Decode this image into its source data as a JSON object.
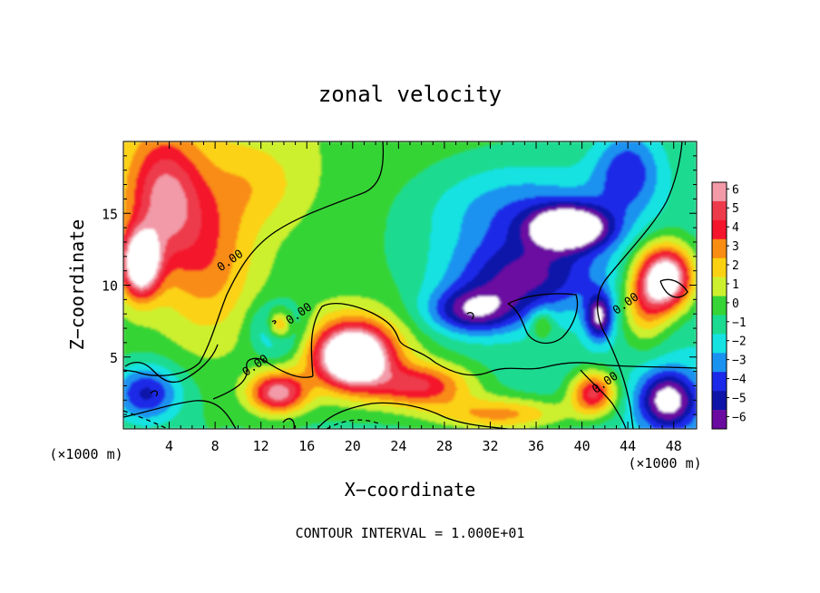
{
  "chart_data": {
    "type": "heatmap",
    "title": "zonal velocity",
    "xlabel": "X−coordinate",
    "ylabel": "Z−coordinate",
    "x_unit_left": "(×1000 m)",
    "x_unit_right": "(×1000 m)",
    "footer": "CONTOUR INTERVAL = 1.000E+01",
    "xlim": [
      0,
      50
    ],
    "ylim": [
      0,
      20
    ],
    "x_ticks": [
      4,
      8,
      12,
      16,
      20,
      24,
      28,
      32,
      36,
      40,
      44,
      48
    ],
    "x_tick_labels": [
      "4",
      "8",
      "12",
      "16",
      "20",
      "24",
      "28",
      "32",
      "36",
      "40",
      "44",
      "48"
    ],
    "y_ticks": [
      5,
      10,
      15
    ],
    "y_tick_labels": [
      "5",
      "10",
      "15"
    ],
    "colorbar": {
      "values": [
        6,
        5,
        4,
        3,
        2,
        1,
        0,
        -1,
        -2,
        -3,
        -4,
        -5,
        -6
      ],
      "labels": [
        "6",
        "5",
        "4",
        "3",
        "2",
        "1",
        "0",
        "−1",
        "−2",
        "−3",
        "−4",
        "−5",
        "−6"
      ],
      "colors": [
        "#f29aa8",
        "#ee3b4b",
        "#f4152c",
        "#f98c12",
        "#fbd212",
        "#cdf02e",
        "#36d436",
        "#1bdb90",
        "#17e2e2",
        "#1a92f0",
        "#1b29e8",
        "#0f14a8",
        "#6a0aa0"
      ]
    },
    "contour_labels": [
      {
        "x": 9.5,
        "y": 11.5,
        "text": "0.00"
      },
      {
        "x": 15.5,
        "y": 7.8,
        "text": "0.00"
      },
      {
        "x": 11.7,
        "y": 4.2,
        "text": "0.00"
      },
      {
        "x": 44.0,
        "y": 8.5,
        "text": "0.00"
      },
      {
        "x": 42.2,
        "y": 3.0,
        "text": "0.00"
      }
    ],
    "field_blobs": [
      {
        "x": 3.5,
        "y": 16.0,
        "value": 5.0,
        "sx": 3.2,
        "sy": 4.5
      },
      {
        "x": 7.5,
        "y": 12.0,
        "value": 3.0,
        "sx": 4.0,
        "sy": 6.0
      },
      {
        "x": 12.0,
        "y": 17.0,
        "value": 1.5,
        "sx": 4.0,
        "sy": 3.0
      },
      {
        "x": 1.5,
        "y": 11.5,
        "value": 9.0,
        "sx": 1.6,
        "sy": 2.2
      },
      {
        "x": 39.0,
        "y": 14.0,
        "value": -7.5,
        "sx": 3.5,
        "sy": 1.5
      },
      {
        "x": 34.5,
        "y": 15.0,
        "value": -3.0,
        "sx": 8.0,
        "sy": 3.5
      },
      {
        "x": 44.0,
        "y": 18.0,
        "value": -3.5,
        "sx": 3.0,
        "sy": 3.0
      },
      {
        "x": 30.5,
        "y": 8.2,
        "value": -5.0,
        "sx": 4.0,
        "sy": 1.6
      },
      {
        "x": 35.0,
        "y": 10.5,
        "value": -4.5,
        "sx": 6.5,
        "sy": 2.5
      },
      {
        "x": 47.5,
        "y": 10.5,
        "value": 9.0,
        "sx": 2.2,
        "sy": 2.2
      },
      {
        "x": 45.5,
        "y": 9.0,
        "value": 4.0,
        "sx": 2.0,
        "sy": 3.0
      },
      {
        "x": 41.5,
        "y": 7.8,
        "value": -5.5,
        "sx": 1.2,
        "sy": 1.6
      },
      {
        "x": 36.5,
        "y": 7.3,
        "value": 2.5,
        "sx": 1.0,
        "sy": 1.0
      },
      {
        "x": 13.5,
        "y": 7.0,
        "value": -5.0,
        "sx": 2.0,
        "sy": 1.7
      },
      {
        "x": 13.6,
        "y": 7.2,
        "value": 6.5,
        "sx": 1.2,
        "sy": 1.1
      },
      {
        "x": 20.0,
        "y": 5.0,
        "value": 9.5,
        "sx": 3.0,
        "sy": 2.0
      },
      {
        "x": 20.5,
        "y": 5.5,
        "value": 3.0,
        "sx": 5.5,
        "sy": 3.2
      },
      {
        "x": 26.0,
        "y": 3.0,
        "value": 5.0,
        "sx": 4.5,
        "sy": 1.5
      },
      {
        "x": 13.5,
        "y": 2.5,
        "value": 6.5,
        "sx": 2.5,
        "sy": 1.4
      },
      {
        "x": 41.0,
        "y": 2.5,
        "value": 6.0,
        "sx": 2.0,
        "sy": 1.5
      },
      {
        "x": 47.5,
        "y": 2.0,
        "value": -6.0,
        "sx": 2.5,
        "sy": 2.0
      },
      {
        "x": 2.0,
        "y": 2.5,
        "value": -4.5,
        "sx": 3.0,
        "sy": 2.0
      },
      {
        "x": 33.0,
        "y": 1.0,
        "value": 4.0,
        "sx": 6.0,
        "sy": 1.2
      }
    ]
  }
}
